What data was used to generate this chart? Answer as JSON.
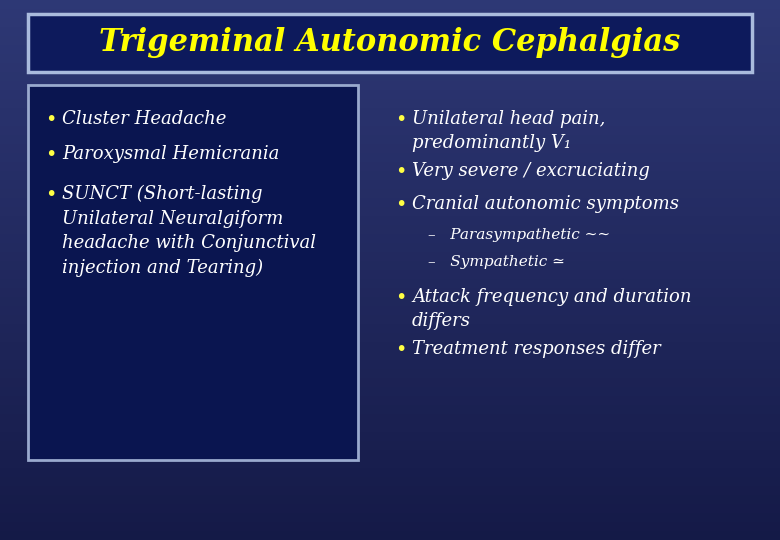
{
  "title": "Trigeminal Autonomic Cephalgias",
  "title_color": "#FFFF00",
  "title_fontsize": 22,
  "bg_color_top": "#1a2055",
  "bg_color_bottom": "#2a3575",
  "header_box_face": "#0d1a5c",
  "header_box_edge": "#aabbdd",
  "left_box_face": "#0a1550",
  "left_box_edge": "#9aaace",
  "text_color_white": "#ffffff",
  "bullet_color_yellow": "#FFFF44",
  "left_bullets": [
    "Cluster Headache",
    "Paroxysmal Hemicrania",
    "SUNCT (Short-lasting\nUnilateral Neuralgiform\nheadache with Conjunctival\ninjection and Tearing)"
  ],
  "right_bullet1": "Unilateral head pain,\npredominantly V₁",
  "right_bullet2": "Very severe / excruciating",
  "right_bullet3": "Cranial autonomic symptoms",
  "right_sub1": "–   Parasympathetic ∼∼",
  "right_sub2": "–   Sympathetic ≃",
  "right_bullet4": "Attack frequency and duration\ndiffers",
  "right_bullet5": "Treatment responses differ",
  "fontsize_body": 13,
  "fontsize_sub": 11
}
